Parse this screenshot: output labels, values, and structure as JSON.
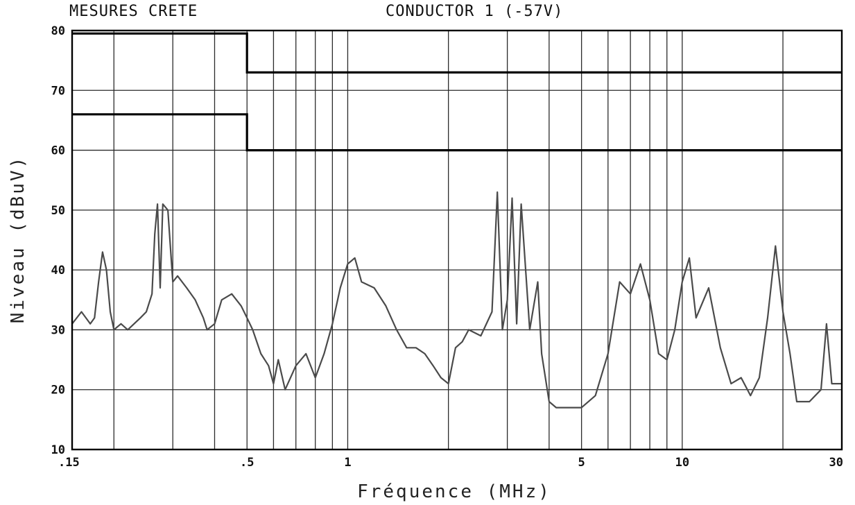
{
  "chart_data": {
    "type": "line",
    "title_left": "MESURES CRETE",
    "title_right": "CONDUCTOR 1 (-57V)",
    "xlabel": "Fréquence (MHz)",
    "ylabel": "Niveau (dBuV)",
    "x_scale": "log",
    "xlim": [
      0.15,
      30
    ],
    "ylim": [
      10,
      80
    ],
    "x_tick_labels": [
      ".15",
      ".5",
      "1",
      "5",
      "10",
      "30"
    ],
    "y_tick_labels": [
      "10",
      "20",
      "30",
      "40",
      "50",
      "60",
      "70",
      "80"
    ],
    "y_ticks": [
      10,
      20,
      30,
      40,
      50,
      60,
      70,
      80
    ],
    "x_ticks": [
      0.15,
      0.5,
      1,
      5,
      10,
      30
    ],
    "grid": true,
    "limit_lines": [
      {
        "name": "limit-quasi-peak",
        "points": [
          [
            0.15,
            79.5
          ],
          [
            0.5,
            79.5
          ],
          [
            0.5,
            73
          ],
          [
            30,
            73
          ]
        ]
      },
      {
        "name": "limit-average",
        "points": [
          [
            0.15,
            66
          ],
          [
            0.5,
            66
          ],
          [
            0.5,
            60
          ],
          [
            30,
            60
          ]
        ]
      }
    ],
    "series": [
      {
        "values": [
          [
            0.15,
            31
          ],
          [
            0.16,
            33
          ],
          [
            0.17,
            31
          ],
          [
            0.175,
            32
          ],
          [
            0.18,
            38
          ],
          [
            0.185,
            43
          ],
          [
            0.19,
            40
          ],
          [
            0.195,
            33
          ],
          [
            0.2,
            30
          ],
          [
            0.21,
            31
          ],
          [
            0.22,
            30
          ],
          [
            0.24,
            32
          ],
          [
            0.25,
            33
          ],
          [
            0.26,
            36
          ],
          [
            0.265,
            46
          ],
          [
            0.27,
            51
          ],
          [
            0.275,
            37
          ],
          [
            0.28,
            51
          ],
          [
            0.29,
            50
          ],
          [
            0.3,
            38
          ],
          [
            0.31,
            39
          ],
          [
            0.33,
            37
          ],
          [
            0.35,
            35
          ],
          [
            0.37,
            32
          ],
          [
            0.38,
            30
          ],
          [
            0.4,
            31
          ],
          [
            0.42,
            35
          ],
          [
            0.45,
            36
          ],
          [
            0.48,
            34
          ],
          [
            0.5,
            32
          ],
          [
            0.52,
            30
          ],
          [
            0.55,
            26
          ],
          [
            0.58,
            24
          ],
          [
            0.6,
            21
          ],
          [
            0.62,
            25
          ],
          [
            0.65,
            20
          ],
          [
            0.7,
            24
          ],
          [
            0.75,
            26
          ],
          [
            0.8,
            22
          ],
          [
            0.85,
            26
          ],
          [
            0.9,
            31
          ],
          [
            0.95,
            37
          ],
          [
            1.0,
            41
          ],
          [
            1.05,
            42
          ],
          [
            1.1,
            38
          ],
          [
            1.2,
            37
          ],
          [
            1.3,
            34
          ],
          [
            1.4,
            30
          ],
          [
            1.5,
            27
          ],
          [
            1.6,
            27
          ],
          [
            1.7,
            26
          ],
          [
            1.8,
            24
          ],
          [
            1.9,
            22
          ],
          [
            2.0,
            21
          ],
          [
            2.1,
            27
          ],
          [
            2.2,
            28
          ],
          [
            2.3,
            30
          ],
          [
            2.5,
            29
          ],
          [
            2.7,
            33
          ],
          [
            2.8,
            53
          ],
          [
            2.9,
            30
          ],
          [
            3.0,
            35
          ],
          [
            3.1,
            52
          ],
          [
            3.2,
            31
          ],
          [
            3.3,
            51
          ],
          [
            3.5,
            30
          ],
          [
            3.7,
            38
          ],
          [
            3.8,
            26
          ],
          [
            4.0,
            18
          ],
          [
            4.2,
            17
          ],
          [
            4.5,
            17
          ],
          [
            4.8,
            17
          ],
          [
            5.0,
            17
          ],
          [
            5.5,
            19
          ],
          [
            6.0,
            26
          ],
          [
            6.5,
            38
          ],
          [
            7.0,
            36
          ],
          [
            7.5,
            41
          ],
          [
            8.0,
            35
          ],
          [
            8.5,
            26
          ],
          [
            9.0,
            25
          ],
          [
            9.5,
            30
          ],
          [
            10.0,
            38
          ],
          [
            10.5,
            42
          ],
          [
            11.0,
            32
          ],
          [
            12.0,
            37
          ],
          [
            13.0,
            27
          ],
          [
            14.0,
            21
          ],
          [
            15.0,
            22
          ],
          [
            16.0,
            19
          ],
          [
            17.0,
            22
          ],
          [
            18.0,
            32
          ],
          [
            19.0,
            44
          ],
          [
            20.0,
            33
          ],
          [
            21.0,
            26
          ],
          [
            22.0,
            18
          ],
          [
            24.0,
            18
          ],
          [
            26.0,
            20
          ],
          [
            27.0,
            31
          ],
          [
            28.0,
            21
          ],
          [
            30.0,
            21
          ]
        ]
      }
    ]
  }
}
